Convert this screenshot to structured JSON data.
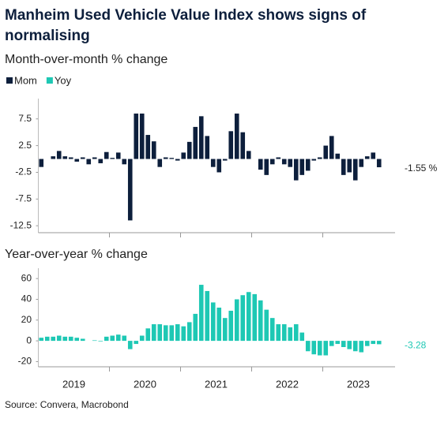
{
  "title": "Manheim Used Vehicle Value Index shows signs of normalising",
  "source": "Source: Convera, Macrobond",
  "chart_data": [
    {
      "type": "bar",
      "subtitle": "Month-over-month % change",
      "series": [
        {
          "name": "Mom",
          "color": "#0d1f3c",
          "values": [
            -1.5,
            0,
            0.5,
            1.5,
            0.5,
            0.3,
            -0.5,
            0.3,
            -1.0,
            0.3,
            -0.8,
            1.3,
            0.2,
            1.2,
            -1.0,
            -11.5,
            8.5,
            8.5,
            4.5,
            3.3,
            -1.5,
            0.3,
            0.2,
            -0.3,
            1.2,
            3.2,
            6.0,
            8.0,
            4.3,
            -1.5,
            -2.5,
            -0.3,
            5.2,
            8.5,
            5.0,
            1.5,
            0,
            -2.0,
            -3.0,
            -1.0,
            0.3,
            -1.0,
            -1.5,
            -4.0,
            -3.0,
            -2.2,
            -0.3,
            0.3,
            2.5,
            4.3,
            1.0,
            -3.0,
            -2.5,
            -4.0,
            -1.5,
            0.5,
            1.2,
            -1.55
          ],
          "value_labels": [
            null,
            null,
            null,
            null,
            null,
            null,
            null,
            null,
            null,
            null,
            null,
            null,
            null,
            null,
            null,
            null,
            null,
            null,
            null,
            null,
            null,
            null,
            null,
            null,
            null,
            null,
            null,
            null,
            null,
            null,
            null,
            null,
            null,
            null,
            null,
            null,
            null,
            null,
            null,
            null,
            null,
            null,
            null,
            null,
            null,
            null,
            null,
            null,
            null,
            null,
            null,
            null,
            null,
            null,
            null,
            null,
            null,
            "-1.55 %"
          ]
        }
      ],
      "ylim": [
        -13.8,
        11.3
      ],
      "yticks": [
        7.5,
        2.5,
        -2.5,
        -7.5,
        -12.5
      ]
    },
    {
      "type": "bar",
      "subtitle": "Year-over-year % change",
      "series": [
        {
          "name": "Yoy",
          "color": "#1ec8b4",
          "values": [
            3,
            4,
            4,
            5,
            4,
            4,
            3,
            2,
            0,
            0.5,
            -0.5,
            4,
            5,
            6,
            5,
            -8,
            -3,
            5,
            12,
            16,
            16,
            15,
            15,
            16,
            14,
            18,
            26,
            54,
            48,
            37,
            32,
            22,
            29,
            40,
            44,
            47,
            45,
            39,
            30,
            22,
            16,
            16,
            13,
            16,
            8,
            -10,
            -13,
            -14,
            -14,
            -5,
            -3,
            -6,
            -8,
            -10,
            -11,
            -5,
            -3,
            -3.28
          ]
        }
      ],
      "ylim": [
        -25,
        70
      ],
      "yticks": [
        60,
        40,
        20,
        0,
        -20
      ],
      "x_labels": [
        "2019",
        "2020",
        "2021",
        "2022",
        "2023"
      ]
    }
  ]
}
